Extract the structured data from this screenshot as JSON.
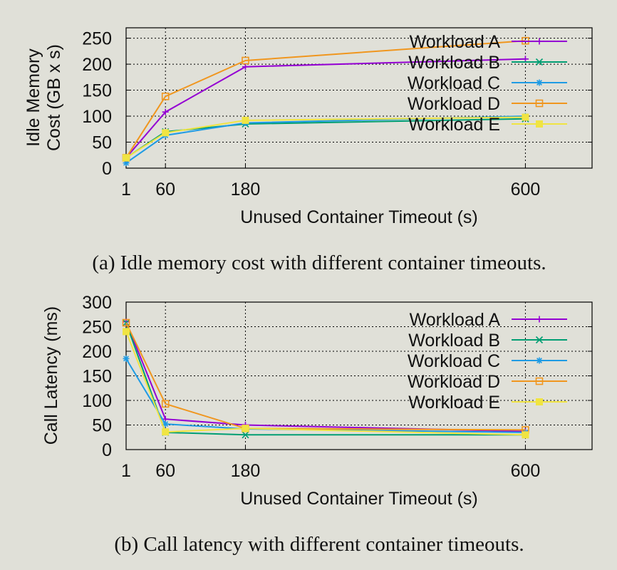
{
  "chart_data": [
    {
      "type": "line",
      "caption": "(a) Idle memory cost with different container timeouts.",
      "xlabel": "Unused Container Timeout (s)",
      "ylabel": [
        "Idle Memory",
        "Cost (GB x s)"
      ],
      "x": [
        1,
        60,
        180,
        600
      ],
      "xticks": [
        1,
        60,
        180,
        600
      ],
      "yticks": [
        0,
        50,
        100,
        150,
        200,
        250
      ],
      "xlim": [
        1,
        700
      ],
      "ylim": [
        0,
        270
      ],
      "grid": true,
      "legend_position": "top-right",
      "series": [
        {
          "name": "Workload A",
          "color": "#9400d3",
          "marker": "plus",
          "values": [
            20,
            108,
            195,
            210
          ]
        },
        {
          "name": "Workload B",
          "color": "#009e73",
          "marker": "cross",
          "values": [
            20,
            70,
            85,
            95
          ]
        },
        {
          "name": "Workload C",
          "color": "#1e9be4",
          "marker": "asterisk",
          "values": [
            10,
            63,
            87,
            100
          ]
        },
        {
          "name": "Workload D",
          "color": "#f0961e",
          "marker": "open-square",
          "values": [
            20,
            138,
            207,
            245
          ]
        },
        {
          "name": "Workload E",
          "color": "#f0e442",
          "marker": "filled-square",
          "values": [
            20,
            68,
            92,
            98
          ]
        }
      ]
    },
    {
      "type": "line",
      "caption": "(b) Call latency with different container timeouts.",
      "xlabel": "Unused Container Timeout (s)",
      "ylabel": [
        "Call Latency (ms)"
      ],
      "x": [
        1,
        60,
        180,
        600
      ],
      "xticks": [
        1,
        60,
        180,
        600
      ],
      "yticks": [
        0,
        50,
        100,
        150,
        200,
        250,
        300
      ],
      "xlim": [
        1,
        700
      ],
      "ylim": [
        0,
        300
      ],
      "grid": true,
      "legend_position": "top-right",
      "series": [
        {
          "name": "Workload A",
          "color": "#9400d3",
          "marker": "plus",
          "values": [
            260,
            62,
            50,
            37
          ]
        },
        {
          "name": "Workload B",
          "color": "#009e73",
          "marker": "cross",
          "values": [
            258,
            35,
            30,
            30
          ]
        },
        {
          "name": "Workload C",
          "color": "#1e9be4",
          "marker": "asterisk",
          "values": [
            185,
            52,
            42,
            35
          ]
        },
        {
          "name": "Workload D",
          "color": "#f0961e",
          "marker": "open-square",
          "values": [
            258,
            93,
            43,
            40
          ]
        },
        {
          "name": "Workload E",
          "color": "#f0e442",
          "marker": "filled-square",
          "values": [
            240,
            36,
            43,
            30
          ]
        }
      ]
    }
  ]
}
